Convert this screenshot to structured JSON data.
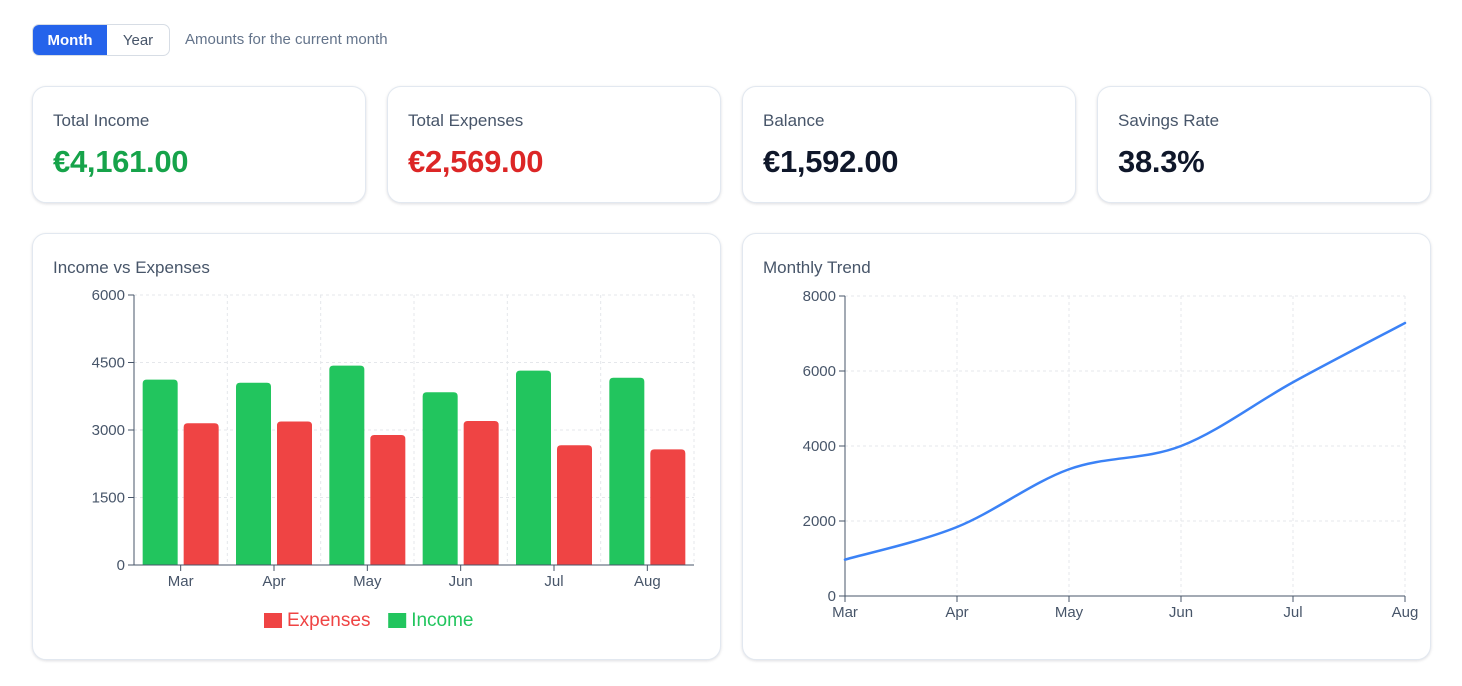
{
  "toggle": {
    "month_label": "Month",
    "year_label": "Year",
    "selected": "Month"
  },
  "hint": "Amounts for the current month",
  "stats": [
    {
      "label": "Total Income",
      "value": "€4,161.00",
      "color": "#16a34a"
    },
    {
      "label": "Total Expenses",
      "value": "€2,569.00",
      "color": "#dc2626"
    },
    {
      "label": "Balance",
      "value": "€1,592.00",
      "color": "#0f172a"
    },
    {
      "label": "Savings Rate",
      "value": "38.3%",
      "color": "#0f172a"
    }
  ],
  "bar_panel": {
    "title": "Income vs Expenses"
  },
  "line_panel": {
    "title": "Monthly Trend"
  },
  "chart_data": [
    {
      "type": "bar",
      "title": "Income vs Expenses",
      "categories": [
        "Mar",
        "Apr",
        "May",
        "Jun",
        "Jul",
        "Aug"
      ],
      "series": [
        {
          "name": "Income",
          "color": "#22c55e",
          "values": [
            4120,
            4050,
            4430,
            3840,
            4320,
            4161
          ]
        },
        {
          "name": "Expenses",
          "color": "#ef4444",
          "values": [
            3150,
            3190,
            2890,
            3200,
            2660,
            2569
          ]
        }
      ],
      "ylim": [
        0,
        6000
      ],
      "yticks": [
        0,
        1500,
        3000,
        4500,
        6000
      ],
      "grid": true,
      "legend_position": "bottom-center",
      "legend_order": [
        "Expenses",
        "Income"
      ]
    },
    {
      "type": "line",
      "title": "Monthly Trend",
      "x": [
        "Mar",
        "Apr",
        "May",
        "Jun",
        "Jul",
        "Aug"
      ],
      "series": [
        {
          "color": "#3b82f6",
          "values": [
            970,
            1840,
            3380,
            4000,
            5700,
            7280
          ]
        }
      ],
      "ylim": [
        0,
        8000
      ],
      "yticks": [
        0,
        2000,
        4000,
        6000,
        8000
      ],
      "grid": true
    }
  ]
}
